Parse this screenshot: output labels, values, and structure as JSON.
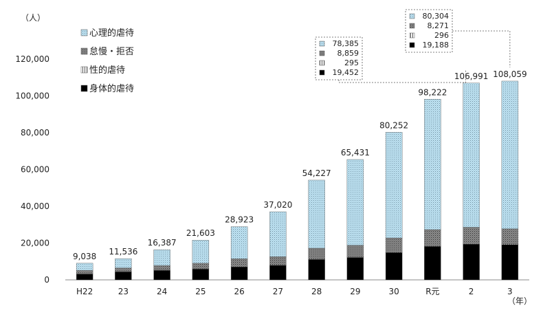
{
  "chart_data": {
    "type": "bar",
    "stacked": true,
    "y_unit": "（人）",
    "x_unit": "（年）",
    "ylim": [
      0,
      120000
    ],
    "yticks": [
      0,
      20000,
      40000,
      60000,
      80000,
      100000,
      120000
    ],
    "ytick_labels": [
      "0",
      "20,000",
      "40,000",
      "60,000",
      "80,000",
      "100,000",
      "120,000"
    ],
    "grid": false,
    "legend_position": "top-left",
    "categories": [
      "H22",
      "23",
      "24",
      "25",
      "26",
      "27",
      "28",
      "29",
      "30",
      "R元",
      "2",
      "3"
    ],
    "totals": [
      9038,
      11536,
      16387,
      21603,
      28923,
      37020,
      54227,
      65431,
      80252,
      98222,
      106991,
      108059
    ],
    "total_labels": [
      "9,038",
      "11,536",
      "16,387",
      "21,603",
      "28,923",
      "37,020",
      "54,227",
      "65,431",
      "80,252",
      "98,222",
      "106,991",
      "108,059"
    ],
    "series": [
      {
        "name": "身体的虐待",
        "key": "physical",
        "color": "#000000",
        "pattern": "solid",
        "values": [
          3200,
          4400,
          5200,
          5900,
          7100,
          7900,
          11100,
          12200,
          14900,
          18200,
          19452,
          19188
        ]
      },
      {
        "name": "性的虐待",
        "key": "sexual",
        "color": "#ffffff",
        "pattern": "vertical-lines",
        "values": [
          180,
          190,
          220,
          230,
          250,
          270,
          300,
          280,
          280,
          300,
          295,
          296
        ]
      },
      {
        "name": "怠慢・拒否",
        "key": "neglect",
        "color": "#808080",
        "pattern": "stipple-dark",
        "values": [
          1800,
          1900,
          2400,
          2900,
          4100,
          4400,
          5800,
          6300,
          7600,
          8800,
          8859,
          8271
        ]
      },
      {
        "name": "心理的虐待",
        "key": "psychological",
        "color": "#bfe3f3",
        "pattern": "stipple-light",
        "values": [
          3858,
          5046,
          8567,
          12573,
          17473,
          24450,
          37027,
          46651,
          57472,
          70922,
          78385,
          80304
        ]
      }
    ],
    "legend": [
      "心理的虐待",
      "怠慢・拒否",
      "性的虐待",
      "身体的虐待"
    ],
    "callouts": [
      {
        "category": "2",
        "position": "left",
        "rows": [
          {
            "series": "心理的虐待",
            "label": "78,385"
          },
          {
            "series": "怠慢・拒否",
            "label": "8,859"
          },
          {
            "series": "性的虐待",
            "label": "295"
          },
          {
            "series": "身体的虐待",
            "label": "19,452"
          }
        ]
      },
      {
        "category": "3",
        "position": "left",
        "rows": [
          {
            "series": "心理的虐待",
            "label": "80,304"
          },
          {
            "series": "怠慢・拒否",
            "label": "8,271"
          },
          {
            "series": "性的虐待",
            "label": "296"
          },
          {
            "series": "身体的虐待",
            "label": "19,188"
          }
        ]
      }
    ]
  }
}
